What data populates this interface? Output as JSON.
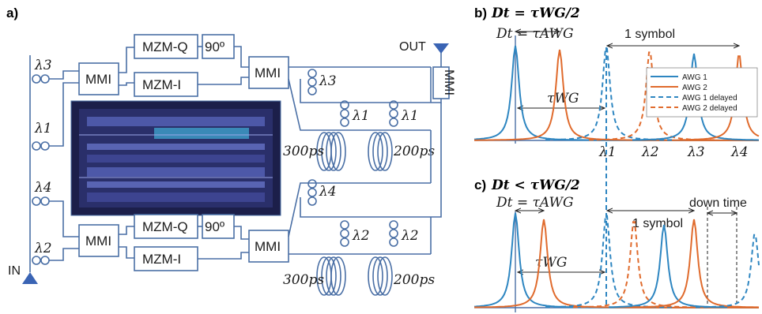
{
  "panel_a": {
    "label": "a)",
    "mmi": "MMI",
    "mzm_q": "MZM-Q",
    "mzm_i": "MZM-I",
    "phase": "90º",
    "in_label": "IN",
    "out_label": "OUT",
    "delay_long": "300ps",
    "delay_short": "200ps",
    "lambda1": "λ1",
    "lambda2": "λ2",
    "lambda3": "λ3",
    "lambda4": "λ4"
  },
  "panel_b": {
    "label": "b)",
    "title": "Dt = τWG/2",
    "dt_label": "Dt = τAWG",
    "symbol_label": "1 symbol",
    "twg_label": "τWG",
    "x_ticks": [
      "λ1",
      "λ2",
      "λ3",
      "λ4"
    ],
    "legend": [
      {
        "name": "AWG 1",
        "color": "#2e86c1",
        "dashed": false
      },
      {
        "name": "AWG 2",
        "color": "#e06b2d",
        "dashed": false
      },
      {
        "name": "AWG 1 delayed",
        "color": "#2e86c1",
        "dashed": true
      },
      {
        "name": "AWG 2 delayed",
        "color": "#e06b2d",
        "dashed": true
      }
    ]
  },
  "panel_c": {
    "label": "c)",
    "title": "Dt < τWG/2",
    "dt_label": "Dt = τAWG",
    "symbol_label": "1 symbol",
    "down_time_label": "down time",
    "twg_label": "τWG"
  },
  "colors": {
    "awg1": "#2e86c1",
    "awg2": "#e06b2d",
    "wire": "#4a6fa5"
  }
}
